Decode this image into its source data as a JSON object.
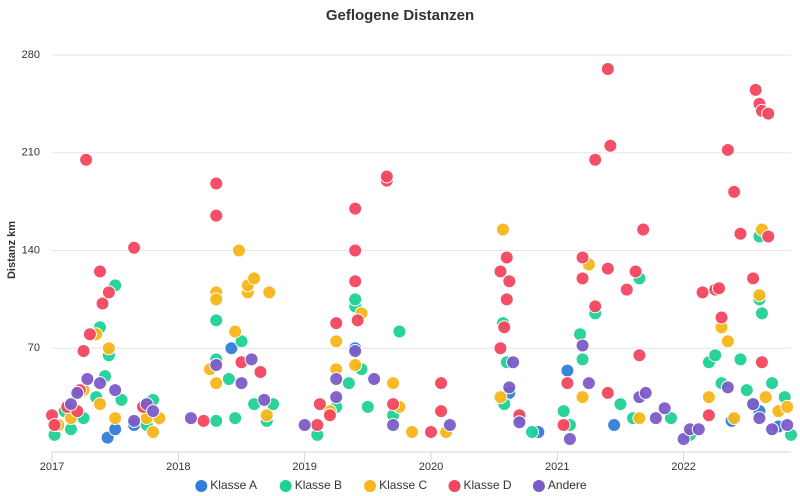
{
  "chart_data": {
    "type": "scatter",
    "title": "Geflogene Distanzen",
    "y_label": "Distanz km",
    "xlim": [
      2017,
      2022.85
    ],
    "xticks": [
      2017,
      2018,
      2019,
      2020,
      2021,
      2022
    ],
    "ylim": [
      0,
      285
    ],
    "yticks": [
      70,
      140,
      210,
      280
    ],
    "grid": true,
    "legend": "bottom",
    "series": [
      {
        "name": "Klasse A",
        "color": "#2f7ed8",
        "x": [
          2017.44,
          2017.5,
          2017.65,
          2018.42,
          2019.4,
          2020.62,
          2020.85,
          2021.08,
          2021.45,
          2022.38,
          2022.6,
          2022.75
        ],
        "values": [
          6,
          12,
          15,
          70,
          70,
          38,
          10,
          54,
          15,
          18,
          25,
          14
        ]
      },
      {
        "name": "Klasse B",
        "color": "#1dd193",
        "x": [
          2017.02,
          2017.1,
          2017.15,
          2017.25,
          2017.35,
          2017.38,
          2017.42,
          2017.45,
          2017.5,
          2017.55,
          2017.75,
          2017.8,
          2018.3,
          2018.3,
          2018.3,
          2018.4,
          2018.5,
          2018.45,
          2018.6,
          2018.7,
          2018.75,
          2019.1,
          2019.25,
          2019.35,
          2019.4,
          2019.4,
          2019.45,
          2019.5,
          2019.75,
          2019.7,
          2020.57,
          2020.58,
          2020.6,
          2020.7,
          2020.8,
          2021.05,
          2021.1,
          2021.18,
          2021.2,
          2021.3,
          2021.5,
          2021.6,
          2021.65,
          2021.9,
          2022.05,
          2022.2,
          2022.25,
          2022.3,
          2022.45,
          2022.5,
          2022.55,
          2022.6,
          2022.6,
          2022.62,
          2022.7,
          2022.8,
          2022.85
        ],
        "values": [
          8,
          25,
          12,
          20,
          35,
          85,
          50,
          65,
          115,
          33,
          15,
          33,
          18,
          90,
          62,
          48,
          75,
          20,
          30,
          18,
          30,
          8,
          28,
          45,
          100,
          105,
          55,
          28,
          82,
          22,
          88,
          30,
          60,
          20,
          10,
          25,
          15,
          80,
          62,
          95,
          30,
          20,
          120,
          20,
          8,
          60,
          65,
          45,
          62,
          40,
          30,
          105,
          150,
          95,
          45,
          35,
          8
        ]
      },
      {
        "name": "Klasse C",
        "color": "#f7b619",
        "x": [
          2017.05,
          2017.15,
          2017.25,
          2017.35,
          2017.38,
          2017.45,
          2017.5,
          2017.75,
          2017.8,
          2017.85,
          2018.25,
          2018.3,
          2018.3,
          2018.3,
          2018.45,
          2018.48,
          2018.55,
          2018.55,
          2018.6,
          2018.7,
          2018.72,
          2019.2,
          2019.25,
          2019.25,
          2019.4,
          2019.45,
          2019.7,
          2019.75,
          2019.85,
          2020.12,
          2020.57,
          2020.55,
          2021.2,
          2021.25,
          2021.65,
          2022.2,
          2022.3,
          2022.35,
          2022.4,
          2022.6,
          2022.62,
          2022.65,
          2022.75,
          2022.82
        ],
        "values": [
          15,
          20,
          40,
          80,
          30,
          70,
          20,
          20,
          10,
          20,
          55,
          110,
          105,
          45,
          82,
          140,
          110,
          115,
          120,
          22,
          110,
          25,
          55,
          75,
          58,
          95,
          45,
          28,
          10,
          10,
          155,
          35,
          35,
          130,
          20,
          35,
          85,
          75,
          20,
          108,
          155,
          35,
          25,
          28
        ]
      },
      {
        "name": "Klasse D",
        "color": "#f2475f",
        "x": [
          2017.0,
          2017.02,
          2017.12,
          2017.2,
          2017.22,
          2017.25,
          2017.27,
          2017.3,
          2017.38,
          2017.4,
          2017.45,
          2017.65,
          2017.72,
          2018.2,
          2018.3,
          2018.3,
          2018.5,
          2018.65,
          2019.1,
          2019.12,
          2019.2,
          2019.25,
          2019.4,
          2019.4,
          2019.4,
          2019.42,
          2019.65,
          2019.65,
          2019.7,
          2020.0,
          2020.08,
          2020.08,
          2020.55,
          2020.55,
          2020.58,
          2020.6,
          2020.6,
          2020.62,
          2020.7,
          2021.05,
          2021.08,
          2021.2,
          2021.2,
          2021.3,
          2021.3,
          2021.4,
          2021.4,
          2021.42,
          2021.4,
          2021.55,
          2021.62,
          2021.65,
          2021.68,
          2022.15,
          2022.2,
          2022.25,
          2022.28,
          2022.3,
          2022.35,
          2022.4,
          2022.45,
          2022.55,
          2022.57,
          2022.6,
          2022.62,
          2022.67,
          2022.67,
          2022.62
        ],
        "values": [
          22,
          15,
          28,
          25,
          40,
          68,
          205,
          80,
          125,
          102,
          110,
          142,
          28,
          18,
          188,
          165,
          60,
          53,
          15,
          30,
          22,
          88,
          118,
          170,
          140,
          90,
          190,
          193,
          30,
          10,
          45,
          25,
          70,
          125,
          85,
          105,
          135,
          118,
          22,
          15,
          45,
          135,
          120,
          205,
          100,
          270,
          127,
          215,
          38,
          112,
          125,
          65,
          155,
          110,
          22,
          112,
          113,
          92,
          212,
          182,
          152,
          120,
          255,
          245,
          240,
          238,
          150,
          60
        ]
      },
      {
        "name": "Andere",
        "color": "#7b5cc7",
        "x": [
          2017.15,
          2017.2,
          2017.28,
          2017.38,
          2017.5,
          2017.65,
          2017.75,
          2017.8,
          2018.1,
          2018.3,
          2018.5,
          2018.58,
          2018.68,
          2019.0,
          2019.25,
          2019.25,
          2019.4,
          2019.55,
          2019.7,
          2020.15,
          2020.62,
          2020.65,
          2020.7,
          2021.1,
          2021.2,
          2021.25,
          2021.65,
          2021.7,
          2021.78,
          2021.85,
          2022.0,
          2022.05,
          2022.12,
          2022.35,
          2022.55,
          2022.6,
          2022.7,
          2022.82
        ],
        "values": [
          30,
          38,
          48,
          45,
          40,
          18,
          30,
          25,
          20,
          58,
          45,
          62,
          33,
          15,
          35,
          48,
          68,
          48,
          15,
          15,
          42,
          60,
          17,
          5,
          72,
          45,
          35,
          38,
          20,
          27,
          5,
          12,
          12,
          42,
          30,
          20,
          12,
          15
        ]
      }
    ]
  }
}
